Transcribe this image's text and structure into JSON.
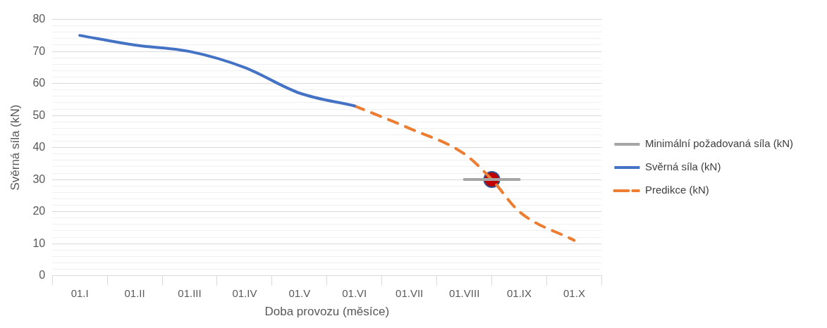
{
  "chart_data": {
    "type": "line",
    "xlabel": "Doba provozu (měsíce)",
    "ylabel": "Svěrná síla (kN)",
    "categories": [
      null,
      "01.I",
      null,
      "01.II",
      null,
      "01.III",
      null,
      "01.IV",
      null,
      "01.V",
      null,
      "01.VI",
      null,
      "01.VII",
      null,
      "01.VIII",
      null,
      "01.IX",
      null,
      "01.X",
      null
    ],
    "ylim": [
      0,
      80
    ],
    "yticks": [
      0,
      {
        "value": 2,
        "label": null
      },
      {
        "value": 4,
        "label": null
      },
      {
        "value": 6,
        "label": null
      },
      {
        "value": 8,
        "label": null
      },
      10,
      {
        "value": 12,
        "label": null
      },
      {
        "value": 14,
        "label": null
      },
      {
        "value": 16,
        "label": null
      },
      {
        "value": 18,
        "label": null
      },
      20,
      {
        "value": 22,
        "label": null
      },
      {
        "value": 24,
        "label": null
      },
      {
        "value": 26,
        "label": null
      },
      {
        "value": 28,
        "label": null
      },
      30,
      {
        "value": 32,
        "label": null
      },
      {
        "value": 34,
        "label": null
      },
      {
        "value": 36,
        "label": null
      },
      {
        "value": 38,
        "label": null
      },
      40,
      {
        "value": 42,
        "label": null
      },
      {
        "value": 44,
        "label": null
      },
      {
        "value": 46,
        "label": null
      },
      {
        "value": 48,
        "label": null
      },
      50,
      {
        "value": 52,
        "label": null
      },
      {
        "value": 54,
        "label": null
      },
      {
        "value": 56,
        "label": null
      },
      {
        "value": 58,
        "label": null
      },
      60,
      {
        "value": 62,
        "label": null
      },
      {
        "value": 64,
        "label": null
      },
      {
        "value": 66,
        "label": null
      },
      {
        "value": 68,
        "label": null
      },
      70,
      {
        "value": 72,
        "label": null
      },
      {
        "value": 74,
        "label": null
      },
      {
        "value": 76,
        "label": null
      },
      {
        "value": 78,
        "label": null
      },
      80
    ],
    "grid": "y",
    "legend": "right",
    "series": [
      {
        "name": "Minimální požadovaná síla (kN)",
        "color": "#a5a5a5",
        "values": [
          null,
          null,
          null,
          null,
          null,
          null,
          null,
          null,
          null,
          null,
          null,
          null,
          null,
          null,
          null,
          30,
          null,
          30,
          null,
          null,
          null
        ],
        "line_style": "solid"
      },
      {
        "name": "Svěrná síla (kN)",
        "color": "#4472c4",
        "values": [
          null,
          75,
          null,
          72,
          null,
          70,
          null,
          65,
          null,
          57,
          null,
          53,
          null,
          null,
          null,
          null,
          null,
          null,
          null,
          null,
          null
        ],
        "line_style": "solid"
      },
      {
        "name": "Predikce (kN)",
        "color": "#ed7d31",
        "values": [
          null,
          null,
          null,
          null,
          null,
          null,
          null,
          null,
          null,
          null,
          null,
          53,
          null,
          46,
          null,
          38,
          30,
          20,
          null,
          11,
          null
        ],
        "line_style": "dashed"
      },
      {
        "type": "scatter",
        "color": "#c00000",
        "values": [
          null,
          null,
          null,
          null,
          null,
          null,
          null,
          null,
          null,
          null,
          null,
          null,
          null,
          null,
          null,
          null,
          30,
          null,
          null,
          null,
          null
        ],
        "marker": "circle"
      }
    ]
  }
}
